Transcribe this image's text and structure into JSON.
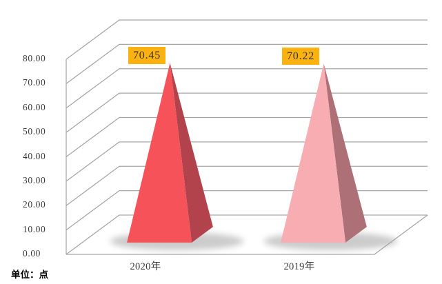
{
  "chart_data": {
    "type": "bar",
    "subtype": "pyramid-3d",
    "title": "",
    "unit_label": "单位：点",
    "categories": [
      "2020年",
      "2019年"
    ],
    "values": [
      70.45,
      70.22
    ],
    "data_labels": [
      "70.45",
      "70.22"
    ],
    "y_ticks": [
      "0.00",
      "10.00",
      "20.00",
      "30.00",
      "40.00",
      "50.00",
      "60.00",
      "70.00",
      "80.00"
    ],
    "ylim": [
      0,
      80
    ],
    "grid": true,
    "legend": "none",
    "colors": {
      "front": [
        "#F5525A",
        "#F8ADB3"
      ],
      "side": [
        "#B2434C",
        "#AE7077"
      ],
      "label_bg": "#FBB110",
      "label_text": "#333333",
      "grid": "#A6A6A6",
      "axis_text": "#3A3A3A",
      "shadow": "#999999"
    }
  }
}
